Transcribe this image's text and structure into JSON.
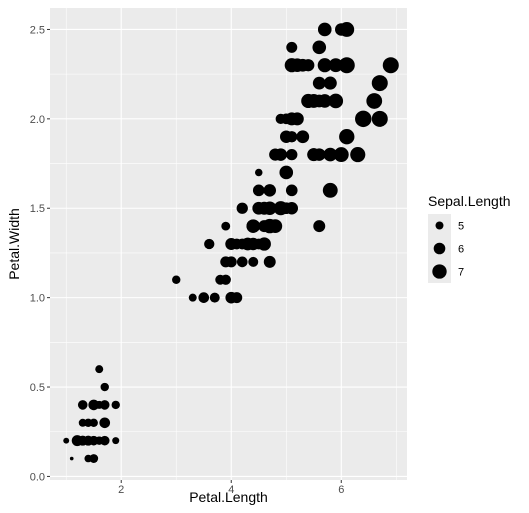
{
  "chart_data": {
    "type": "scatter",
    "title": "",
    "xlabel": "Petal.Length",
    "ylabel": "Petal.Width",
    "xlim": [
      0.705,
      7.195
    ],
    "ylim": [
      -0.02,
      2.62
    ],
    "x_ticks": [
      2,
      4,
      6
    ],
    "y_ticks": [
      0.0,
      0.5,
      1.0,
      1.5,
      2.0,
      2.5
    ],
    "x_tick_labels": [
      "2",
      "4",
      "6"
    ],
    "y_tick_labels": [
      "0.0",
      "0.5",
      "1.0",
      "1.5",
      "2.0",
      "2.5"
    ],
    "grid": true,
    "size_variable": "Sepal.Length",
    "size_range": [
      4.3,
      7.9
    ],
    "legend": {
      "title": "Sepal.Length",
      "position": "right",
      "entries": [
        {
          "label": "5",
          "value": 5
        },
        {
          "label": "6",
          "value": 6
        },
        {
          "label": "7",
          "value": 7
        }
      ]
    },
    "colors": {
      "panel": "#ebebeb",
      "grid_major": "#ffffff",
      "point": "#000000",
      "tick_text": "#4d4d4d"
    },
    "points": [
      {
        "x": 1.4,
        "y": 0.2,
        "size": 5.1
      },
      {
        "x": 1.4,
        "y": 0.2,
        "size": 4.9
      },
      {
        "x": 1.3,
        "y": 0.2,
        "size": 4.7
      },
      {
        "x": 1.5,
        "y": 0.2,
        "size": 4.6
      },
      {
        "x": 1.4,
        "y": 0.2,
        "size": 5.0
      },
      {
        "x": 1.7,
        "y": 0.4,
        "size": 5.4
      },
      {
        "x": 1.4,
        "y": 0.3,
        "size": 4.6
      },
      {
        "x": 1.5,
        "y": 0.2,
        "size": 5.0
      },
      {
        "x": 1.4,
        "y": 0.2,
        "size": 4.4
      },
      {
        "x": 1.5,
        "y": 0.1,
        "size": 4.9
      },
      {
        "x": 1.5,
        "y": 0.2,
        "size": 5.4
      },
      {
        "x": 1.6,
        "y": 0.2,
        "size": 4.8
      },
      {
        "x": 1.4,
        "y": 0.1,
        "size": 4.8
      },
      {
        "x": 1.1,
        "y": 0.1,
        "size": 4.3
      },
      {
        "x": 1.2,
        "y": 0.2,
        "size": 5.8
      },
      {
        "x": 1.5,
        "y": 0.4,
        "size": 5.7
      },
      {
        "x": 1.3,
        "y": 0.4,
        "size": 5.4
      },
      {
        "x": 1.4,
        "y": 0.3,
        "size": 5.1
      },
      {
        "x": 1.7,
        "y": 0.3,
        "size": 5.7
      },
      {
        "x": 1.5,
        "y": 0.3,
        "size": 5.1
      },
      {
        "x": 1.7,
        "y": 0.2,
        "size": 5.4
      },
      {
        "x": 1.5,
        "y": 0.4,
        "size": 5.1
      },
      {
        "x": 1.0,
        "y": 0.2,
        "size": 4.6
      },
      {
        "x": 1.7,
        "y": 0.5,
        "size": 5.1
      },
      {
        "x": 1.9,
        "y": 0.2,
        "size": 4.8
      },
      {
        "x": 1.6,
        "y": 0.2,
        "size": 5.0
      },
      {
        "x": 1.6,
        "y": 0.4,
        "size": 5.0
      },
      {
        "x": 1.5,
        "y": 0.2,
        "size": 5.2
      },
      {
        "x": 1.4,
        "y": 0.2,
        "size": 5.2
      },
      {
        "x": 1.6,
        "y": 0.2,
        "size": 4.7
      },
      {
        "x": 1.6,
        "y": 0.2,
        "size": 4.8
      },
      {
        "x": 1.5,
        "y": 0.4,
        "size": 5.4
      },
      {
        "x": 1.5,
        "y": 0.1,
        "size": 5.2
      },
      {
        "x": 1.4,
        "y": 0.2,
        "size": 5.5
      },
      {
        "x": 1.5,
        "y": 0.2,
        "size": 4.9
      },
      {
        "x": 1.2,
        "y": 0.2,
        "size": 5.0
      },
      {
        "x": 1.3,
        "y": 0.2,
        "size": 5.5
      },
      {
        "x": 1.4,
        "y": 0.1,
        "size": 4.9
      },
      {
        "x": 1.3,
        "y": 0.2,
        "size": 4.4
      },
      {
        "x": 1.5,
        "y": 0.2,
        "size": 5.1
      },
      {
        "x": 1.3,
        "y": 0.3,
        "size": 5.0
      },
      {
        "x": 1.3,
        "y": 0.3,
        "size": 4.5
      },
      {
        "x": 1.3,
        "y": 0.2,
        "size": 4.4
      },
      {
        "x": 1.6,
        "y": 0.6,
        "size": 5.0
      },
      {
        "x": 1.9,
        "y": 0.4,
        "size": 5.1
      },
      {
        "x": 1.4,
        "y": 0.3,
        "size": 4.8
      },
      {
        "x": 1.6,
        "y": 0.2,
        "size": 5.1
      },
      {
        "x": 1.4,
        "y": 0.2,
        "size": 4.6
      },
      {
        "x": 1.5,
        "y": 0.2,
        "size": 5.3
      },
      {
        "x": 1.4,
        "y": 0.2,
        "size": 5.0
      },
      {
        "x": 4.7,
        "y": 1.4,
        "size": 7.0
      },
      {
        "x": 4.5,
        "y": 1.5,
        "size": 6.4
      },
      {
        "x": 4.9,
        "y": 1.5,
        "size": 6.9
      },
      {
        "x": 4.0,
        "y": 1.3,
        "size": 5.5
      },
      {
        "x": 4.6,
        "y": 1.5,
        "size": 6.5
      },
      {
        "x": 4.5,
        "y": 1.3,
        "size": 5.7
      },
      {
        "x": 4.7,
        "y": 1.6,
        "size": 6.3
      },
      {
        "x": 3.3,
        "y": 1.0,
        "size": 4.9
      },
      {
        "x": 4.6,
        "y": 1.3,
        "size": 6.6
      },
      {
        "x": 3.9,
        "y": 1.4,
        "size": 5.2
      },
      {
        "x": 3.5,
        "y": 1.0,
        "size": 5.0
      },
      {
        "x": 4.2,
        "y": 1.5,
        "size": 5.9
      },
      {
        "x": 4.0,
        "y": 1.0,
        "size": 6.0
      },
      {
        "x": 4.7,
        "y": 1.4,
        "size": 6.1
      },
      {
        "x": 3.6,
        "y": 1.3,
        "size": 5.6
      },
      {
        "x": 4.4,
        "y": 1.4,
        "size": 6.7
      },
      {
        "x": 4.5,
        "y": 1.5,
        "size": 5.6
      },
      {
        "x": 4.1,
        "y": 1.0,
        "size": 5.8
      },
      {
        "x": 4.5,
        "y": 1.5,
        "size": 6.2
      },
      {
        "x": 3.9,
        "y": 1.1,
        "size": 5.6
      },
      {
        "x": 4.8,
        "y": 1.8,
        "size": 5.9
      },
      {
        "x": 4.0,
        "y": 1.3,
        "size": 6.1
      },
      {
        "x": 4.9,
        "y": 1.5,
        "size": 6.3
      },
      {
        "x": 4.7,
        "y": 1.2,
        "size": 6.1
      },
      {
        "x": 4.3,
        "y": 1.3,
        "size": 6.4
      },
      {
        "x": 4.4,
        "y": 1.4,
        "size": 6.6
      },
      {
        "x": 4.8,
        "y": 1.4,
        "size": 6.8
      },
      {
        "x": 5.0,
        "y": 1.7,
        "size": 6.7
      },
      {
        "x": 4.5,
        "y": 1.5,
        "size": 6.0
      },
      {
        "x": 3.5,
        "y": 1.0,
        "size": 5.7
      },
      {
        "x": 3.8,
        "y": 1.1,
        "size": 5.5
      },
      {
        "x": 3.7,
        "y": 1.0,
        "size": 5.5
      },
      {
        "x": 3.9,
        "y": 1.2,
        "size": 5.8
      },
      {
        "x": 5.1,
        "y": 1.6,
        "size": 6.0
      },
      {
        "x": 4.5,
        "y": 1.5,
        "size": 5.4
      },
      {
        "x": 4.5,
        "y": 1.6,
        "size": 6.0
      },
      {
        "x": 4.7,
        "y": 1.5,
        "size": 6.7
      },
      {
        "x": 4.4,
        "y": 1.3,
        "size": 6.3
      },
      {
        "x": 4.1,
        "y": 1.3,
        "size": 5.6
      },
      {
        "x": 4.0,
        "y": 1.3,
        "size": 5.5
      },
      {
        "x": 4.4,
        "y": 1.2,
        "size": 5.5
      },
      {
        "x": 4.6,
        "y": 1.4,
        "size": 6.1
      },
      {
        "x": 4.0,
        "y": 1.2,
        "size": 5.8
      },
      {
        "x": 3.3,
        "y": 1.0,
        "size": 5.0
      },
      {
        "x": 4.2,
        "y": 1.3,
        "size": 5.6
      },
      {
        "x": 4.2,
        "y": 1.2,
        "size": 5.7
      },
      {
        "x": 4.2,
        "y": 1.3,
        "size": 5.7
      },
      {
        "x": 4.3,
        "y": 1.3,
        "size": 6.2
      },
      {
        "x": 3.0,
        "y": 1.1,
        "size": 5.1
      },
      {
        "x": 4.1,
        "y": 1.3,
        "size": 5.7
      },
      {
        "x": 6.0,
        "y": 2.5,
        "size": 6.3
      },
      {
        "x": 5.1,
        "y": 1.9,
        "size": 5.8
      },
      {
        "x": 5.9,
        "y": 2.1,
        "size": 7.1
      },
      {
        "x": 5.6,
        "y": 1.8,
        "size": 6.3
      },
      {
        "x": 5.8,
        "y": 2.2,
        "size": 6.5
      },
      {
        "x": 6.6,
        "y": 2.1,
        "size": 7.6
      },
      {
        "x": 4.5,
        "y": 1.7,
        "size": 4.9
      },
      {
        "x": 6.3,
        "y": 1.8,
        "size": 7.3
      },
      {
        "x": 5.8,
        "y": 1.8,
        "size": 6.7
      },
      {
        "x": 6.1,
        "y": 2.5,
        "size": 7.2
      },
      {
        "x": 5.1,
        "y": 2.0,
        "size": 6.5
      },
      {
        "x": 5.3,
        "y": 1.9,
        "size": 6.4
      },
      {
        "x": 5.5,
        "y": 2.1,
        "size": 6.8
      },
      {
        "x": 5.0,
        "y": 2.0,
        "size": 5.7
      },
      {
        "x": 5.1,
        "y": 2.4,
        "size": 5.8
      },
      {
        "x": 5.3,
        "y": 2.3,
        "size": 6.4
      },
      {
        "x": 5.5,
        "y": 1.8,
        "size": 6.5
      },
      {
        "x": 6.7,
        "y": 2.2,
        "size": 7.7
      },
      {
        "x": 6.9,
        "y": 2.3,
        "size": 7.7
      },
      {
        "x": 5.0,
        "y": 1.5,
        "size": 6.0
      },
      {
        "x": 5.7,
        "y": 2.3,
        "size": 6.9
      },
      {
        "x": 4.9,
        "y": 2.0,
        "size": 5.6
      },
      {
        "x": 6.7,
        "y": 2.0,
        "size": 7.7
      },
      {
        "x": 4.9,
        "y": 1.8,
        "size": 6.3
      },
      {
        "x": 5.7,
        "y": 2.1,
        "size": 6.7
      },
      {
        "x": 6.0,
        "y": 1.8,
        "size": 7.2
      },
      {
        "x": 4.8,
        "y": 1.8,
        "size": 6.2
      },
      {
        "x": 4.9,
        "y": 1.8,
        "size": 6.1
      },
      {
        "x": 5.6,
        "y": 2.1,
        "size": 6.4
      },
      {
        "x": 5.8,
        "y": 1.6,
        "size": 7.2
      },
      {
        "x": 6.1,
        "y": 1.9,
        "size": 7.4
      },
      {
        "x": 6.4,
        "y": 2.0,
        "size": 7.9
      },
      {
        "x": 5.6,
        "y": 2.2,
        "size": 6.4
      },
      {
        "x": 5.1,
        "y": 1.5,
        "size": 6.3
      },
      {
        "x": 5.6,
        "y": 1.4,
        "size": 6.1
      },
      {
        "x": 6.1,
        "y": 2.3,
        "size": 7.7
      },
      {
        "x": 5.6,
        "y": 2.4,
        "size": 6.3
      },
      {
        "x": 5.5,
        "y": 1.8,
        "size": 6.4
      },
      {
        "x": 4.8,
        "y": 1.8,
        "size": 6.0
      },
      {
        "x": 5.4,
        "y": 2.1,
        "size": 6.9
      },
      {
        "x": 5.6,
        "y": 2.4,
        "size": 6.7
      },
      {
        "x": 5.1,
        "y": 2.3,
        "size": 6.9
      },
      {
        "x": 5.1,
        "y": 1.9,
        "size": 5.8
      },
      {
        "x": 5.9,
        "y": 2.3,
        "size": 6.8
      },
      {
        "x": 5.7,
        "y": 2.5,
        "size": 6.7
      },
      {
        "x": 5.2,
        "y": 2.3,
        "size": 6.7
      },
      {
        "x": 5.0,
        "y": 1.9,
        "size": 6.3
      },
      {
        "x": 5.2,
        "y": 2.0,
        "size": 6.5
      },
      {
        "x": 5.4,
        "y": 2.3,
        "size": 6.2
      },
      {
        "x": 5.1,
        "y": 1.8,
        "size": 5.9
      }
    ]
  }
}
